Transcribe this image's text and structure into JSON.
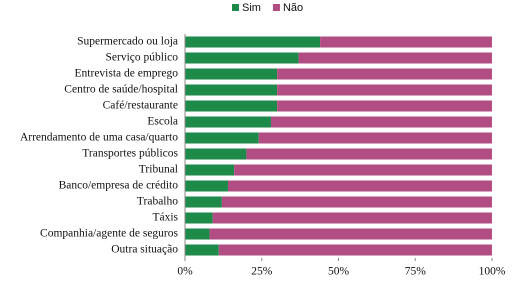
{
  "chart_data": {
    "type": "stacked-barh",
    "categories": [
      "Supermercado ou loja",
      "Serviço público",
      "Entrevista de emprego",
      "Centro de saúde/hospital",
      "Café/restaurante",
      "Escola",
      "Arrendamento de uma casa/quarto",
      "Transportes públicos",
      "Tribunal",
      "Banco/empresa de crédito",
      "Trabalho",
      "Táxis",
      "Companhia/agente de seguros",
      "Outra situação"
    ],
    "series": [
      {
        "name": "Sim",
        "color": "#1e8a4a",
        "values": [
          44,
          37,
          30,
          30,
          30,
          28,
          24,
          20,
          16,
          14,
          12,
          9,
          8,
          11
        ]
      },
      {
        "name": "Não",
        "color": "#b24d83",
        "values": [
          56,
          63,
          70,
          70,
          70,
          72,
          76,
          80,
          84,
          86,
          88,
          91,
          92,
          89
        ]
      }
    ],
    "xlim": [
      0,
      100
    ],
    "xticks": [
      {
        "value": 0,
        "label": "0%"
      },
      {
        "value": 25,
        "label": "25%"
      },
      {
        "value": 50,
        "label": "50%"
      },
      {
        "value": 75,
        "label": "75%"
      },
      {
        "value": 100,
        "label": "100%"
      }
    ]
  }
}
